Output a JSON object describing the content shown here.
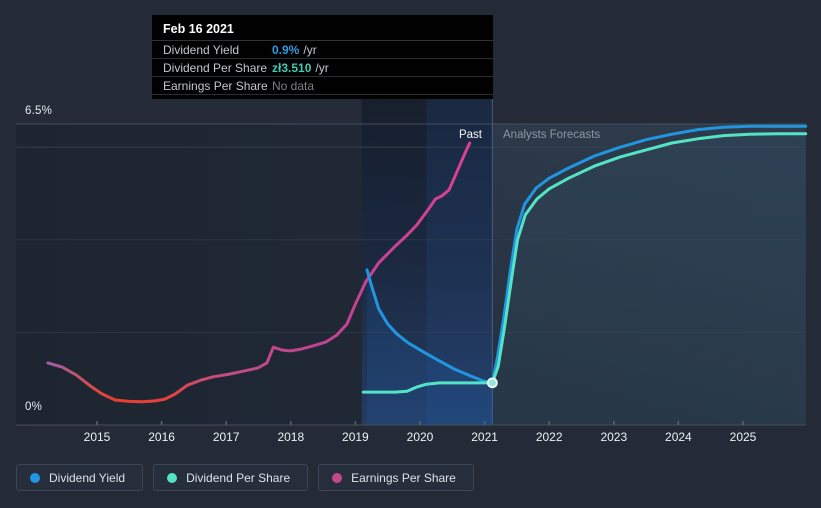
{
  "tooltip": {
    "date": "Feb 16 2021",
    "rows": [
      {
        "label": "Dividend Yield",
        "value": "0.9%",
        "suffix": "/yr",
        "value_color": "#3399e6"
      },
      {
        "label": "Dividend Per Share",
        "value": "zł3.510",
        "suffix": "/yr",
        "value_color": "#41cbb6"
      },
      {
        "label": "Earnings Per Share",
        "value": "No data",
        "suffix": "",
        "value_color": "#7b828a"
      }
    ]
  },
  "axis": {
    "y_top_label": "6.5%",
    "y_bottom_label": "0%",
    "years": [
      "2015",
      "2016",
      "2017",
      "2018",
      "2019",
      "2020",
      "2021",
      "2022",
      "2023",
      "2024",
      "2025"
    ]
  },
  "annotations": {
    "past": "Past",
    "forecast": "Analysts Forecasts"
  },
  "legend": [
    {
      "label": "Dividend Yield",
      "color": "#2196e0"
    },
    {
      "label": "Dividend Per Share",
      "color": "#55e3c6"
    },
    {
      "label": "Earnings Per Share",
      "color": "#c2498e"
    }
  ],
  "chart_data": {
    "type": "line",
    "title": "Dividend history and forecast",
    "ylim": [
      0,
      6.5
    ],
    "y_unit": "%",
    "gridlines": [
      6.5,
      6,
      4,
      2
    ],
    "x_ticks": [
      2015,
      2016,
      2017,
      2018,
      2019,
      2020,
      2021,
      2022,
      2023,
      2024,
      2025
    ],
    "x_range": [
      2014.1,
      2025.97
    ],
    "divider_x": 2021.12,
    "highlight_start_x": 2019.1,
    "legend_position": "bottom-left",
    "series": [
      {
        "name": "Earnings Per Share",
        "color": "#c2498e",
        "gradient": [
          [
            0,
            "#a05fa8"
          ],
          [
            0.1,
            "#d24e52"
          ],
          [
            0.16,
            "#ea3c31"
          ],
          [
            0.27,
            "#e74038"
          ],
          [
            0.35,
            "#d14a63"
          ],
          [
            0.44,
            "#c34b88"
          ],
          [
            0.65,
            "#c04390"
          ],
          [
            1,
            "#d94093"
          ]
        ],
        "points": [
          [
            2014.24,
            1.34
          ],
          [
            2014.46,
            1.25
          ],
          [
            2014.68,
            1.08
          ],
          [
            2014.9,
            0.84
          ],
          [
            2015.08,
            0.67
          ],
          [
            2015.28,
            0.54
          ],
          [
            2015.5,
            0.51
          ],
          [
            2015.7,
            0.5
          ],
          [
            2015.9,
            0.52
          ],
          [
            2016.05,
            0.56
          ],
          [
            2016.21,
            0.67
          ],
          [
            2016.4,
            0.86
          ],
          [
            2016.61,
            0.97
          ],
          [
            2016.8,
            1.04
          ],
          [
            2017.05,
            1.1
          ],
          [
            2017.29,
            1.17
          ],
          [
            2017.49,
            1.23
          ],
          [
            2017.63,
            1.34
          ],
          [
            2017.73,
            1.68
          ],
          [
            2017.86,
            1.62
          ],
          [
            2017.99,
            1.6
          ],
          [
            2018.16,
            1.64
          ],
          [
            2018.35,
            1.71
          ],
          [
            2018.54,
            1.79
          ],
          [
            2018.71,
            1.94
          ],
          [
            2018.87,
            2.18
          ],
          [
            2019.0,
            2.61
          ],
          [
            2019.16,
            3.09
          ],
          [
            2019.36,
            3.5
          ],
          [
            2019.6,
            3.84
          ],
          [
            2019.8,
            4.1
          ],
          [
            2019.95,
            4.32
          ],
          [
            2020.12,
            4.64
          ],
          [
            2020.24,
            4.88
          ],
          [
            2020.34,
            4.95
          ],
          [
            2020.45,
            5.08
          ],
          [
            2020.57,
            5.46
          ],
          [
            2020.69,
            5.85
          ],
          [
            2020.77,
            6.09
          ]
        ]
      },
      {
        "name": "Dividend Yield",
        "color": "#2196e0",
        "points": [
          [
            2019.18,
            3.35
          ],
          [
            2019.26,
            2.96
          ],
          [
            2019.36,
            2.51
          ],
          [
            2019.5,
            2.18
          ],
          [
            2019.64,
            1.97
          ],
          [
            2019.82,
            1.77
          ],
          [
            2020.05,
            1.58
          ],
          [
            2020.28,
            1.4
          ],
          [
            2020.53,
            1.21
          ],
          [
            2020.78,
            1.06
          ],
          [
            2020.98,
            0.95
          ],
          [
            2021.12,
            0.91
          ],
          [
            2021.2,
            1.47
          ],
          [
            2021.3,
            2.35
          ],
          [
            2021.4,
            3.35
          ],
          [
            2021.5,
            4.23
          ],
          [
            2021.62,
            4.77
          ],
          [
            2021.8,
            5.12
          ],
          [
            2022.0,
            5.33
          ],
          [
            2022.3,
            5.55
          ],
          [
            2022.7,
            5.81
          ],
          [
            2023.1,
            6.0
          ],
          [
            2023.5,
            6.16
          ],
          [
            2023.9,
            6.28
          ],
          [
            2024.3,
            6.38
          ],
          [
            2024.7,
            6.43
          ],
          [
            2025.1,
            6.45
          ],
          [
            2025.55,
            6.45
          ],
          [
            2025.97,
            6.45
          ]
        ]
      },
      {
        "name": "Dividend Per Share",
        "color": "#55e3c6",
        "points": [
          [
            2019.12,
            0.71
          ],
          [
            2019.45,
            0.71
          ],
          [
            2019.62,
            0.71
          ],
          [
            2019.8,
            0.73
          ],
          [
            2019.95,
            0.82
          ],
          [
            2020.1,
            0.88
          ],
          [
            2020.3,
            0.91
          ],
          [
            2020.7,
            0.91
          ],
          [
            2021.12,
            0.91
          ],
          [
            2021.21,
            1.27
          ],
          [
            2021.31,
            2.12
          ],
          [
            2021.41,
            3.09
          ],
          [
            2021.51,
            4.0
          ],
          [
            2021.63,
            4.54
          ],
          [
            2021.81,
            4.88
          ],
          [
            2022.0,
            5.1
          ],
          [
            2022.3,
            5.33
          ],
          [
            2022.7,
            5.59
          ],
          [
            2023.1,
            5.79
          ],
          [
            2023.5,
            5.94
          ],
          [
            2023.9,
            6.09
          ],
          [
            2024.3,
            6.18
          ],
          [
            2024.7,
            6.25
          ],
          [
            2025.1,
            6.28
          ],
          [
            2025.55,
            6.29
          ],
          [
            2025.97,
            6.29
          ]
        ]
      }
    ],
    "marker": {
      "series": "Dividend Per Share",
      "x": 2021.12,
      "y": 0.91,
      "fill": "#96e7da",
      "ring": "#f2fbf9"
    }
  }
}
